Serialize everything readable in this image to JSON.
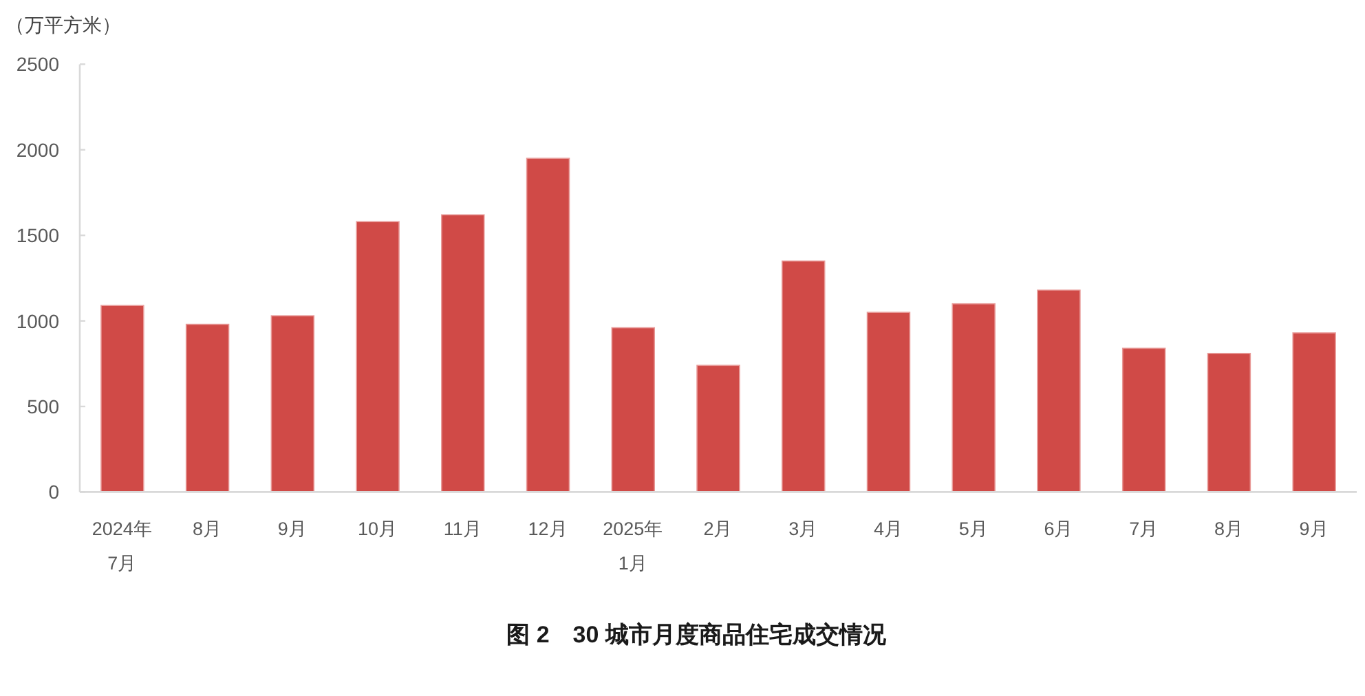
{
  "chart_data": {
    "type": "bar",
    "title": "图 2　30 城市月度商品住宅成交情况",
    "ylabel": "（万平方米）",
    "categories": [
      "2024年\n7月",
      "8月",
      "9月",
      "10月",
      "11月",
      "12月",
      "2025年\n1月",
      "2月",
      "3月",
      "4月",
      "5月",
      "6月",
      "7月",
      "8月",
      "9月"
    ],
    "values": [
      1090,
      980,
      1030,
      1580,
      1620,
      1950,
      960,
      740,
      1350,
      1050,
      1100,
      1180,
      840,
      810,
      930
    ],
    "color": "#d04a47",
    "ylim": [
      0,
      2500
    ],
    "yticks": [
      0,
      500,
      1000,
      1500,
      2000,
      2500
    ]
  }
}
